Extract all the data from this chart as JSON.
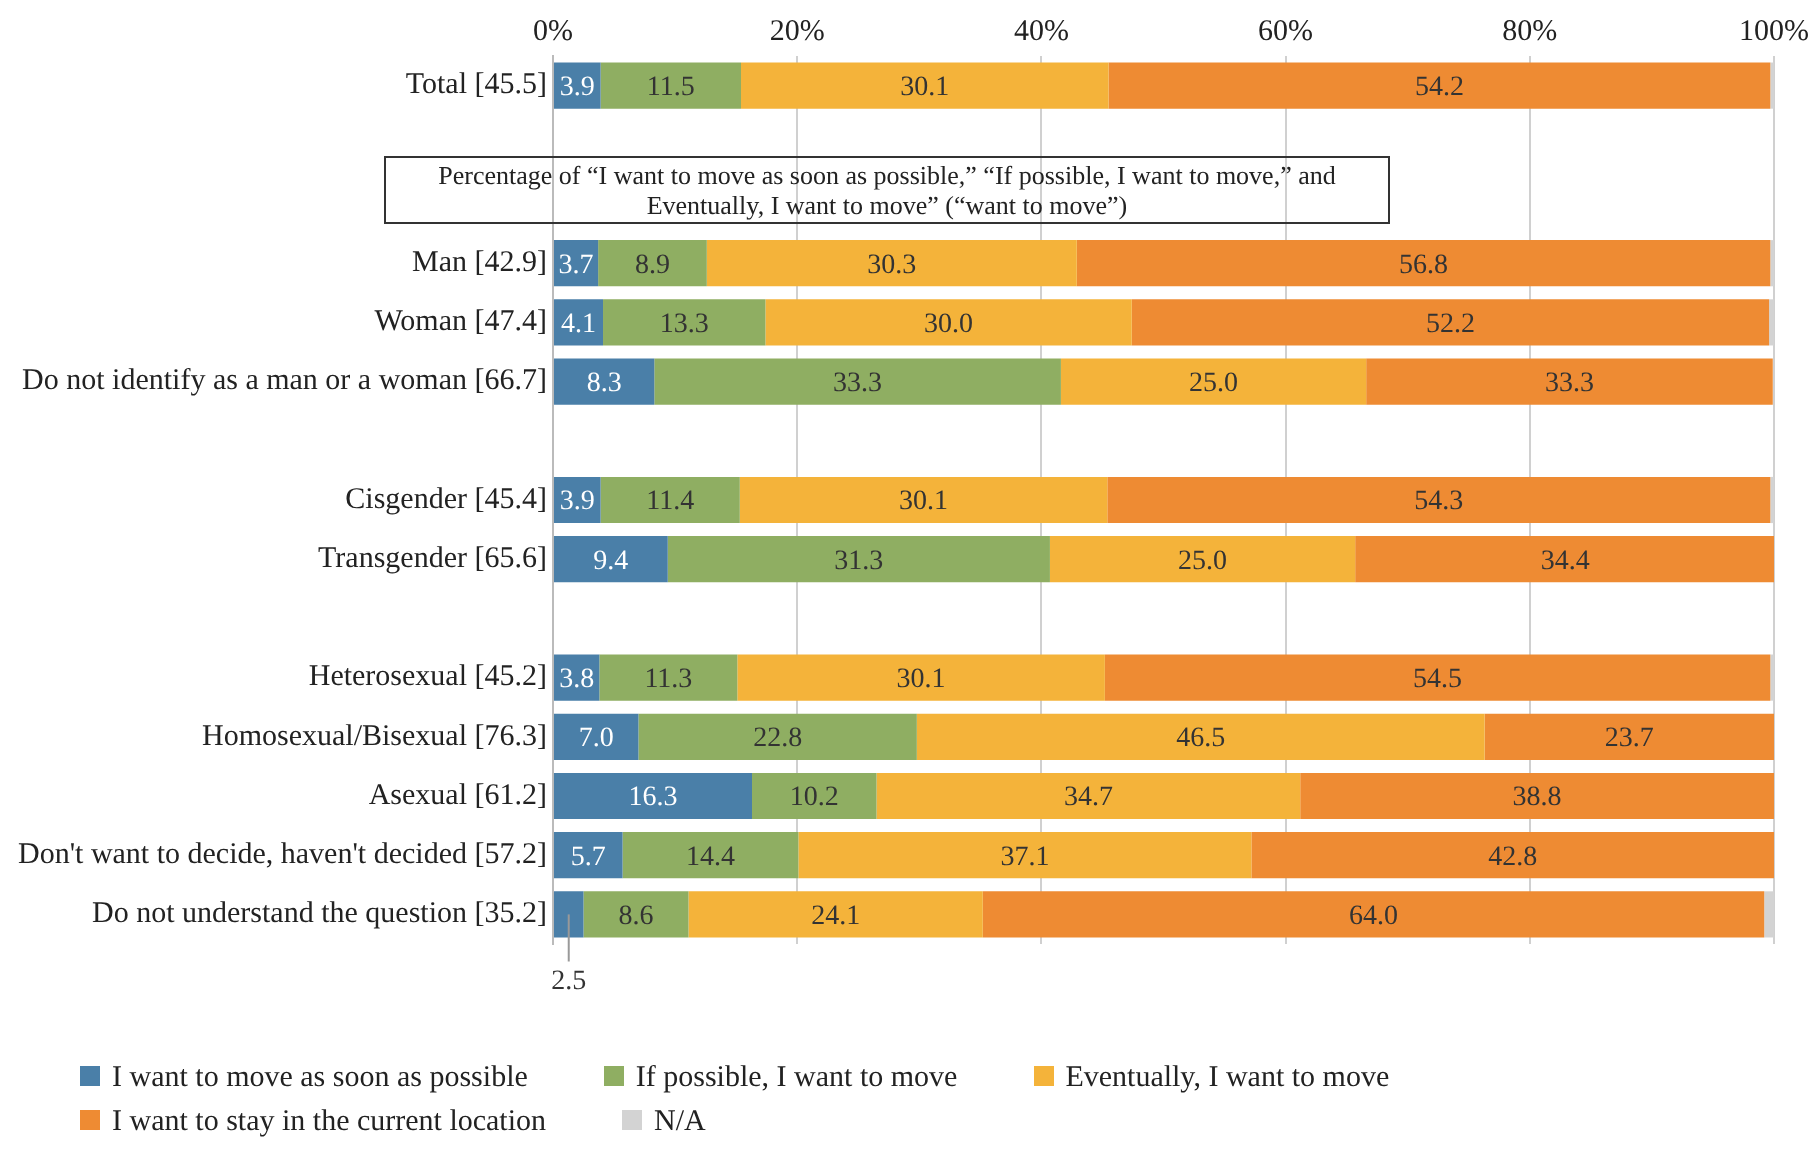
{
  "chart_data": {
    "type": "bar",
    "orientation": "horizontal",
    "stacked": true,
    "categories": [
      "Total [45.5]",
      null,
      null,
      "Man [42.9]",
      "Woman [47.4]",
      "Do not identify as a man or a woman [66.7]",
      null,
      "Cisgender [45.4]",
      "Transgender [65.6]",
      null,
      "Heterosexual [45.2]",
      "Homosexual/Bisexual [76.3]",
      "Asexual [61.2]",
      "Don't want to decide, haven't decided [57.2]",
      "Do not understand the question [35.2]"
    ],
    "series": [
      {
        "name": "I want to move as soon as possible",
        "color": "#4a7fa8",
        "values": [
          3.9,
          null,
          null,
          3.7,
          4.1,
          8.3,
          null,
          3.9,
          9.4,
          null,
          3.8,
          7.0,
          16.3,
          5.7,
          2.5
        ],
        "value_labels": [
          "3.9",
          null,
          null,
          "3.7",
          "4.1",
          "8.3",
          null,
          "3.9",
          "9.4",
          null,
          "3.8",
          "7.0",
          "16.3",
          "5.7",
          "2.5"
        ]
      },
      {
        "name": "If possible, I want to move",
        "color": "#8fae62",
        "values": [
          11.5,
          null,
          null,
          8.9,
          13.3,
          33.3,
          null,
          11.4,
          31.3,
          null,
          11.3,
          22.8,
          10.2,
          14.4,
          8.6
        ],
        "value_labels": [
          "11.5",
          null,
          null,
          "8.9",
          "13.3",
          "33.3",
          null,
          "11.4",
          "31.3",
          null,
          "11.3",
          "22.8",
          "10.2",
          "14.4",
          "8.6"
        ]
      },
      {
        "name": "Eventually, I want to move",
        "color": "#f4b33a",
        "values": [
          30.1,
          null,
          null,
          30.3,
          30.0,
          25.0,
          null,
          30.1,
          25.0,
          null,
          30.1,
          46.5,
          34.7,
          37.1,
          24.1
        ],
        "value_labels": [
          "30.1",
          null,
          null,
          "30.3",
          "30.0",
          "25.0",
          null,
          "30.1",
          "25.0",
          null,
          "30.1",
          "46.5",
          "34.7",
          "37.1",
          "24.1"
        ]
      },
      {
        "name": "I want to stay in the current location",
        "color": "#ee8b33",
        "values": [
          54.2,
          null,
          null,
          56.8,
          52.2,
          33.3,
          null,
          54.3,
          34.4,
          null,
          54.5,
          23.7,
          38.8,
          42.8,
          64.0
        ],
        "value_labels": [
          "54.2",
          null,
          null,
          "56.8",
          "52.2",
          "33.3",
          null,
          "54.3",
          "34.4",
          null,
          "54.5",
          "23.7",
          "38.8",
          "42.8",
          "64.0"
        ]
      },
      {
        "name": "N/A",
        "color": "#d3d3d3",
        "values": [
          0.3,
          null,
          null,
          0.3,
          0.4,
          0,
          null,
          0.3,
          0,
          null,
          0.3,
          0,
          0,
          0,
          0.8
        ]
      }
    ],
    "xlim": [
      0,
      100
    ],
    "xticks": [
      {
        "value": 0,
        "label": "0%"
      },
      {
        "value": 20,
        "label": "20%"
      },
      {
        "value": 40,
        "label": "40%"
      },
      {
        "value": 60,
        "label": "60%"
      },
      {
        "value": 80,
        "label": "80%"
      },
      {
        "value": 100,
        "label": "100%"
      }
    ],
    "grid": "x",
    "legend": "bottom",
    "annotations": [
      "Percentage of “I want to move as soon as possible,” “If possible, I want to move,” and Eventually, I want to move” (“want to move”)"
    ]
  }
}
